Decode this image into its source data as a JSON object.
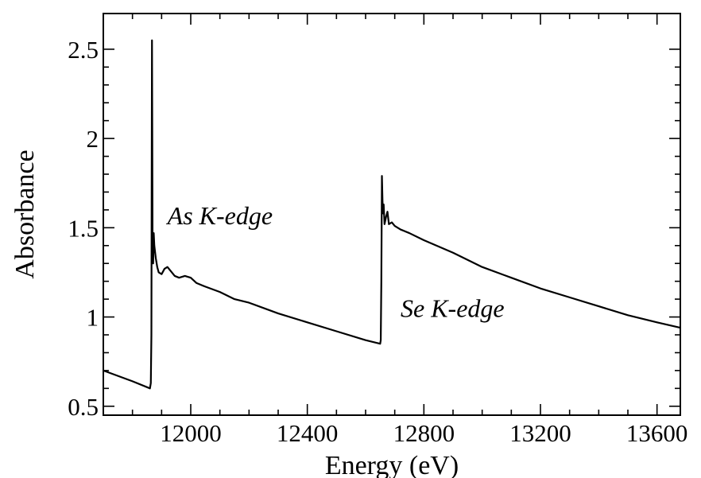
{
  "chart_data": {
    "type": "line",
    "title": "",
    "xlabel": "Energy (eV)",
    "ylabel": "Absorbance",
    "xlim": [
      11700,
      13680
    ],
    "ylim": [
      0.45,
      2.7
    ],
    "grid": false,
    "x_ticks": [
      12000,
      12400,
      12800,
      13200,
      13600
    ],
    "x_tick_labels": [
      "12000",
      "12400",
      "12800",
      "13200",
      "13600"
    ],
    "y_ticks": [
      0.5,
      1,
      1.5,
      2,
      2.5
    ],
    "y_tick_labels": [
      "0.5",
      "1",
      "1.5",
      "2",
      "2.5"
    ],
    "annotations": [
      {
        "text": "As K-edge",
        "x": 11920,
        "y": 1.52
      },
      {
        "text": "Se K-edge",
        "x": 12720,
        "y": 1.0
      }
    ],
    "series": [
      {
        "x": [
          11700,
          11800,
          11860,
          11863,
          11865,
          11866,
          11867,
          11868,
          11869,
          11871,
          11873,
          11875,
          11880,
          11885,
          11890,
          11900,
          11910,
          11920,
          11930,
          11945,
          11960,
          11980,
          12000,
          12020,
          12050,
          12100,
          12150,
          12200,
          12300,
          12400,
          12500,
          12600,
          12650,
          12652,
          12654,
          12655,
          12656,
          12658,
          12660,
          12662,
          12665,
          12670,
          12675,
          12680,
          12690,
          12700,
          12720,
          12750,
          12800,
          12900,
          13000,
          13100,
          13200,
          13300,
          13400,
          13500,
          13600,
          13680
        ],
        "y": [
          0.7,
          0.64,
          0.6,
          0.63,
          0.9,
          1.8,
          2.55,
          2.0,
          1.35,
          1.3,
          1.47,
          1.4,
          1.33,
          1.28,
          1.25,
          1.24,
          1.27,
          1.28,
          1.26,
          1.23,
          1.22,
          1.23,
          1.22,
          1.19,
          1.17,
          1.14,
          1.1,
          1.08,
          1.02,
          0.97,
          0.92,
          0.87,
          0.85,
          0.87,
          1.2,
          1.5,
          1.79,
          1.65,
          1.58,
          1.63,
          1.52,
          1.56,
          1.59,
          1.52,
          1.53,
          1.51,
          1.49,
          1.47,
          1.43,
          1.36,
          1.28,
          1.22,
          1.16,
          1.11,
          1.06,
          1.01,
          0.97,
          0.94
        ]
      }
    ]
  }
}
